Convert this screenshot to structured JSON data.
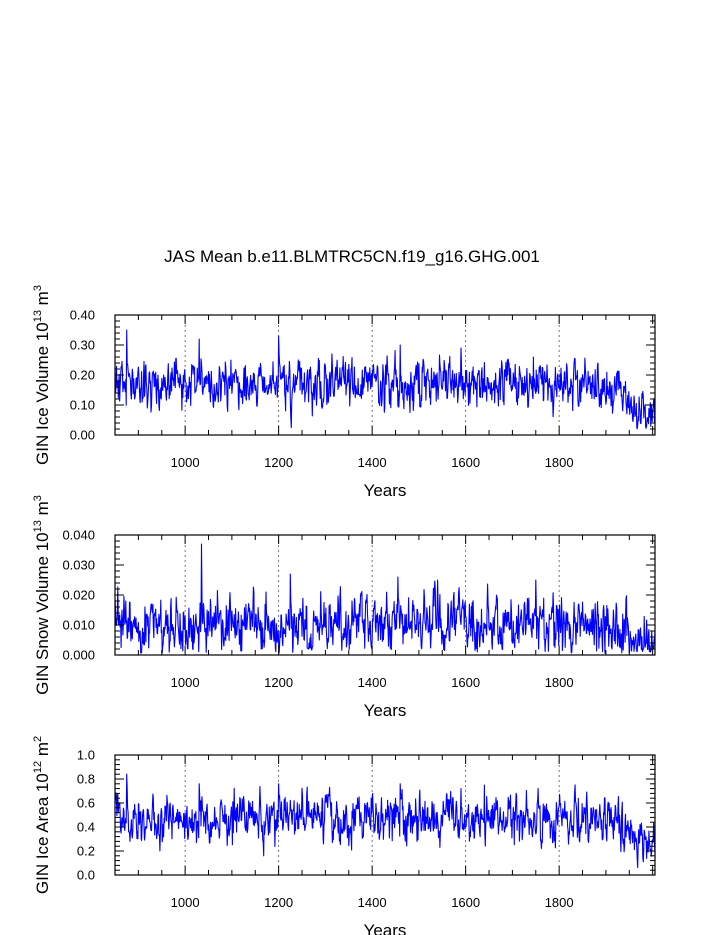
{
  "figure": {
    "title": "JAS Mean b.e11.BLMTRC5CN.f19_g16.GHG.001"
  },
  "chart_data": [
    {
      "type": "line",
      "name": "ice-volume",
      "xlabel": "Years",
      "ylabel_main": "GIN Ice Volume 10",
      "ylabel_sup": "13",
      "ylabel_unit": "m",
      "ylabel_unit_sup": "3",
      "xlim": [
        850,
        2005
      ],
      "ylim": [
        0,
        0.4
      ],
      "xticks": [
        1000,
        1200,
        1400,
        1600,
        1800
      ],
      "yticks": [
        "0.00",
        "0.10",
        "0.20",
        "0.30",
        "0.40"
      ],
      "ytick_values": [
        0,
        0.1,
        0.2,
        0.3,
        0.4
      ],
      "grid": "dashed vertical at major x ticks",
      "series_color": "#0000ff",
      "x_start": 850,
      "x_end": 2005,
      "x_step": 1,
      "base": 0.17,
      "noise": 0.045,
      "seed": 11,
      "trend_start": 1900,
      "trend_end_value": 0.05,
      "spikes": [
        [
          875,
          0.35
        ],
        [
          1030,
          0.32
        ],
        [
          1200,
          0.33
        ],
        [
          1460,
          0.3
        ],
        [
          1590,
          0.29
        ],
        [
          1745,
          0.26
        ]
      ],
      "floor": 0.02
    },
    {
      "type": "line",
      "name": "snow-volume",
      "xlabel": "Years",
      "ylabel_main": "GIN Snow Volume 10",
      "ylabel_sup": "13",
      "ylabel_unit": "m",
      "ylabel_unit_sup": "3",
      "xlim": [
        850,
        2005
      ],
      "ylim": [
        0,
        0.04
      ],
      "xticks": [
        1000,
        1200,
        1400,
        1600,
        1800
      ],
      "yticks": [
        "0.000",
        "0.010",
        "0.020",
        "0.030",
        "0.040"
      ],
      "ytick_values": [
        0,
        0.01,
        0.02,
        0.03,
        0.04
      ],
      "grid": "dashed vertical at major x ticks",
      "series_color": "#0000ff",
      "x_start": 850,
      "x_end": 2005,
      "x_step": 1,
      "base": 0.01,
      "noise": 0.0055,
      "seed": 23,
      "trend_start": 1900,
      "trend_end_value": 0.0008,
      "spikes": [
        [
          1035,
          0.037
        ],
        [
          1225,
          0.027
        ],
        [
          1455,
          0.026
        ],
        [
          1540,
          0.025
        ],
        [
          1750,
          0.025
        ]
      ],
      "floor": 0.0005
    },
    {
      "type": "line",
      "name": "ice-area",
      "xlabel": "Years",
      "ylabel_main": "GIN Ice Area 10",
      "ylabel_sup": "12",
      "ylabel_unit": "m",
      "ylabel_unit_sup": "2",
      "xlim": [
        850,
        2005
      ],
      "ylim": [
        0,
        1.0
      ],
      "xticks": [
        1000,
        1200,
        1400,
        1600,
        1800
      ],
      "yticks": [
        "0.0",
        "0.2",
        "0.4",
        "0.6",
        "0.8",
        "1.0"
      ],
      "ytick_values": [
        0,
        0.2,
        0.4,
        0.6,
        0.8,
        1.0
      ],
      "grid": "dashed vertical at major x ticks",
      "series_color": "#0000ff",
      "x_start": 850,
      "x_end": 2005,
      "x_step": 1,
      "base": 0.46,
      "noise": 0.11,
      "seed": 37,
      "trend_start": 1900,
      "trend_end_value": 0.2,
      "spikes": [
        [
          875,
          0.84
        ],
        [
          1030,
          0.76
        ],
        [
          1200,
          0.76
        ],
        [
          1460,
          0.76
        ],
        [
          1590,
          0.72
        ],
        [
          1640,
          0.75
        ]
      ],
      "floor": 0.05
    }
  ]
}
